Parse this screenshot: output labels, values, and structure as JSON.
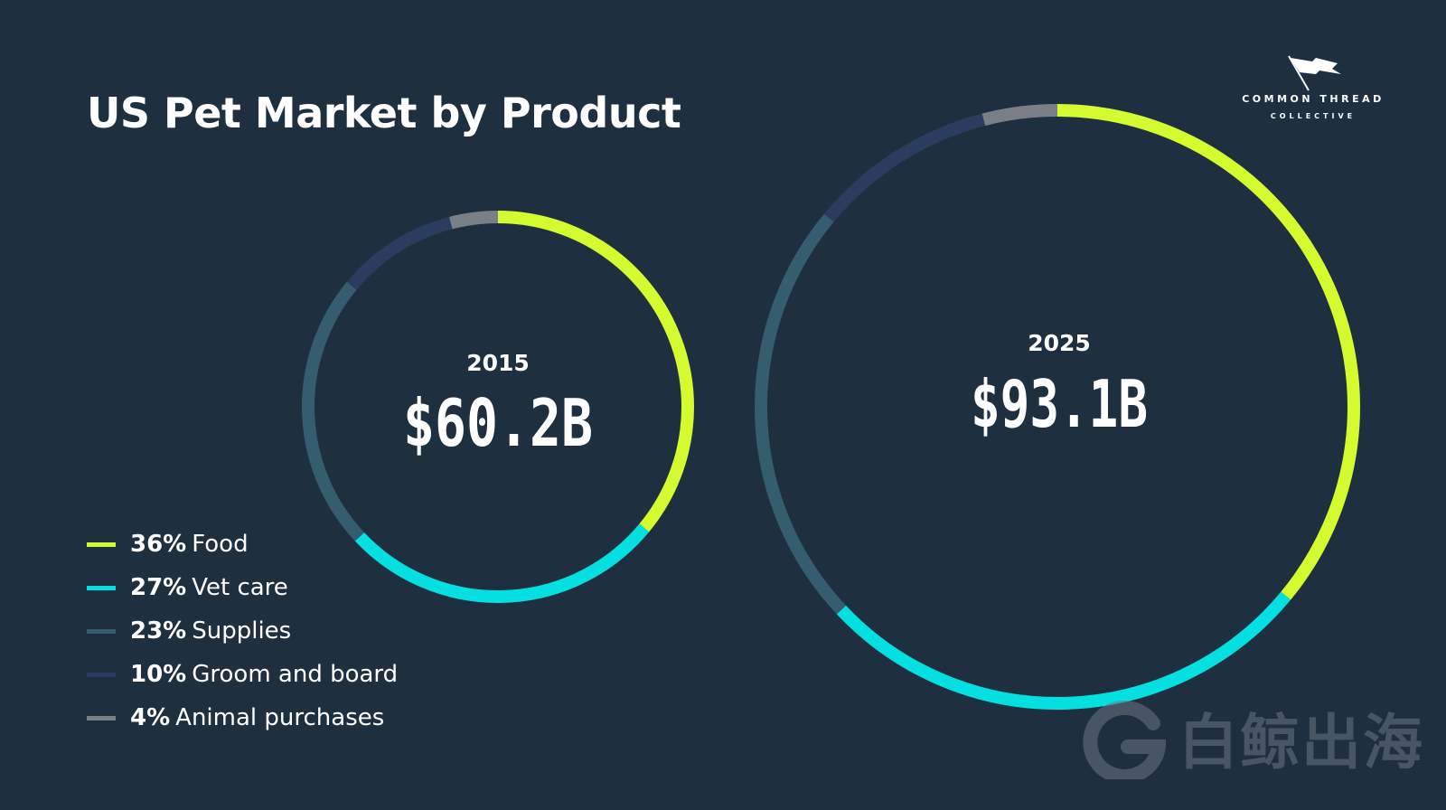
{
  "title": "US Pet Market by Product",
  "logo": {
    "line1": "COMMON THREAD",
    "line2": "COLLECTIVE"
  },
  "watermark": {
    "text": "白鲸出海",
    "icon": "g-logo-icon"
  },
  "colors": {
    "background": "#1e2f40",
    "food": "#d4fb2f",
    "vet_care": "#04e0e2",
    "supplies": "#365c70",
    "groom_and_board": "#2a3d5e",
    "animal_purchases": "#7a7f85"
  },
  "chart_data": {
    "type": "donut",
    "title": "US Pet Market by Product",
    "categories": [
      "Food",
      "Vet care",
      "Supplies",
      "Groom and board",
      "Animal purchases"
    ],
    "percent_labels": [
      "36%",
      "27%",
      "23%",
      "10%",
      "4%"
    ],
    "shares": [
      36,
      27,
      23,
      10,
      4
    ],
    "series": [
      {
        "name": "2015",
        "total_label": "$60.2B",
        "total": 60.2,
        "unit": "billion USD",
        "shares": [
          36,
          27,
          23,
          10,
          4
        ]
      },
      {
        "name": "2025",
        "total_label": "$93.1B",
        "total": 93.1,
        "unit": "billion USD",
        "shares": [
          36,
          27,
          23,
          10,
          4
        ]
      }
    ],
    "legend_position": "bottom-left",
    "grid": false
  }
}
